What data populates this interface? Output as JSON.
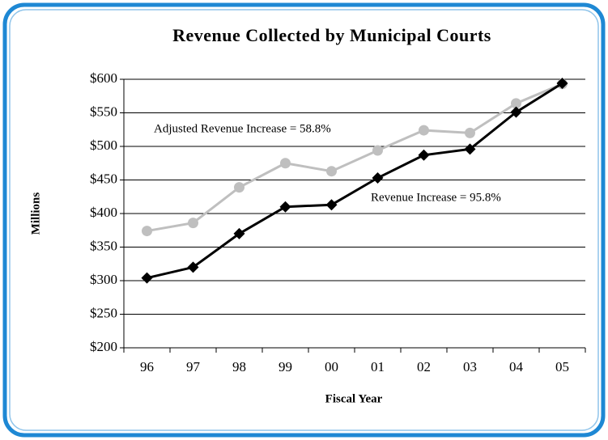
{
  "chart_data": {
    "type": "line",
    "title": "Revenue Collected by Municipal Courts",
    "x_label": "Fiscal Year",
    "y_label": "Millions",
    "categories": [
      "96",
      "97",
      "98",
      "99",
      "00",
      "01",
      "02",
      "03",
      "04",
      "05"
    ],
    "series": [
      {
        "color": "#bfbfbf",
        "marker": "circle",
        "values": [
          374,
          386,
          439,
          475,
          463,
          494,
          524,
          520,
          564,
          593
        ]
      },
      {
        "color": "#000000",
        "marker": "diamond",
        "values": [
          304,
          320,
          370,
          410,
          413,
          453,
          487,
          496,
          551,
          594
        ]
      }
    ],
    "annotations": [
      "Adjusted Revenue Increase = 58.8%",
      "Revenue Increase = 95.8%"
    ],
    "ylim": [
      200,
      600
    ],
    "yticks": [
      {
        "value": 200,
        "label": "$200"
      },
      {
        "value": 250,
        "label": "$250"
      },
      {
        "value": 300,
        "label": "$300"
      },
      {
        "value": 350,
        "label": "$350"
      },
      {
        "value": 400,
        "label": "$400"
      },
      {
        "value": 450,
        "label": "$450"
      },
      {
        "value": 500,
        "label": "$500"
      },
      {
        "value": 550,
        "label": "$550"
      },
      {
        "value": 600,
        "label": "$600"
      }
    ],
    "grid": true
  }
}
